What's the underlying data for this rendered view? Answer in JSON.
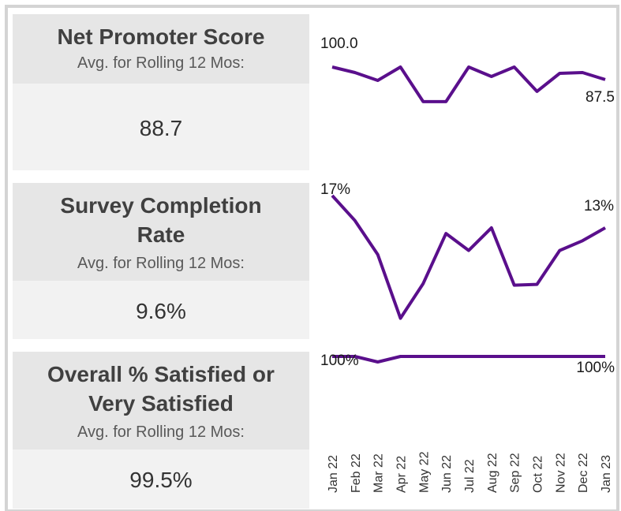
{
  "tiles": [
    {
      "title": "Net Promoter Score",
      "subtitle": "Avg. for Rolling 12 Mos:",
      "value": "88.7"
    },
    {
      "title": "Survey Completion Rate",
      "subtitle": "Avg. for Rolling 12 Mos:",
      "value": "9.6%"
    },
    {
      "title": "Overall % Satisfied or Very Satisfied",
      "subtitle": "Avg. for Rolling 12 Mos:",
      "value": "99.5%"
    }
  ],
  "chart_data": [
    {
      "type": "line",
      "color": "#5a0f8c",
      "ylim": [
        60,
        100
      ],
      "values": [
        100,
        94.5,
        86.7,
        100,
        65.6,
        65.6,
        100,
        90.6,
        100,
        75.8,
        93.7,
        94.5,
        87.5
      ],
      "value_labels": [
        "100.0",
        null,
        null,
        null,
        null,
        null,
        null,
        null,
        null,
        null,
        null,
        null,
        "87.5"
      ]
    },
    {
      "type": "line",
      "color": "#5a0f8c",
      "ylim": [
        0,
        17
      ],
      "values": [
        17,
        13.9,
        9.7,
        1.8,
        6.1,
        12.3,
        10.2,
        13,
        5.9,
        6,
        10.2,
        11.4,
        13
      ],
      "value_labels": [
        "17%",
        null,
        null,
        null,
        null,
        null,
        null,
        null,
        null,
        null,
        null,
        null,
        "13%"
      ]
    },
    {
      "type": "line",
      "color": "#5a0f8c",
      "ylim": [
        0,
        100
      ],
      "categories": [
        "Jan 22",
        "Feb 22",
        "Mar 22",
        "Apr 22",
        "May 22",
        "Jun 22",
        "Jul 22",
        "Aug 22",
        "Sep 22",
        "Oct 22",
        "Nov 22",
        "Dec 22",
        "Jan 23"
      ],
      "values": [
        100,
        100,
        94,
        100,
        100,
        100,
        100,
        100,
        100,
        100,
        100,
        100,
        100
      ],
      "value_labels": [
        "100%",
        null,
        null,
        null,
        null,
        null,
        null,
        null,
        null,
        null,
        null,
        null,
        "100%"
      ]
    }
  ]
}
